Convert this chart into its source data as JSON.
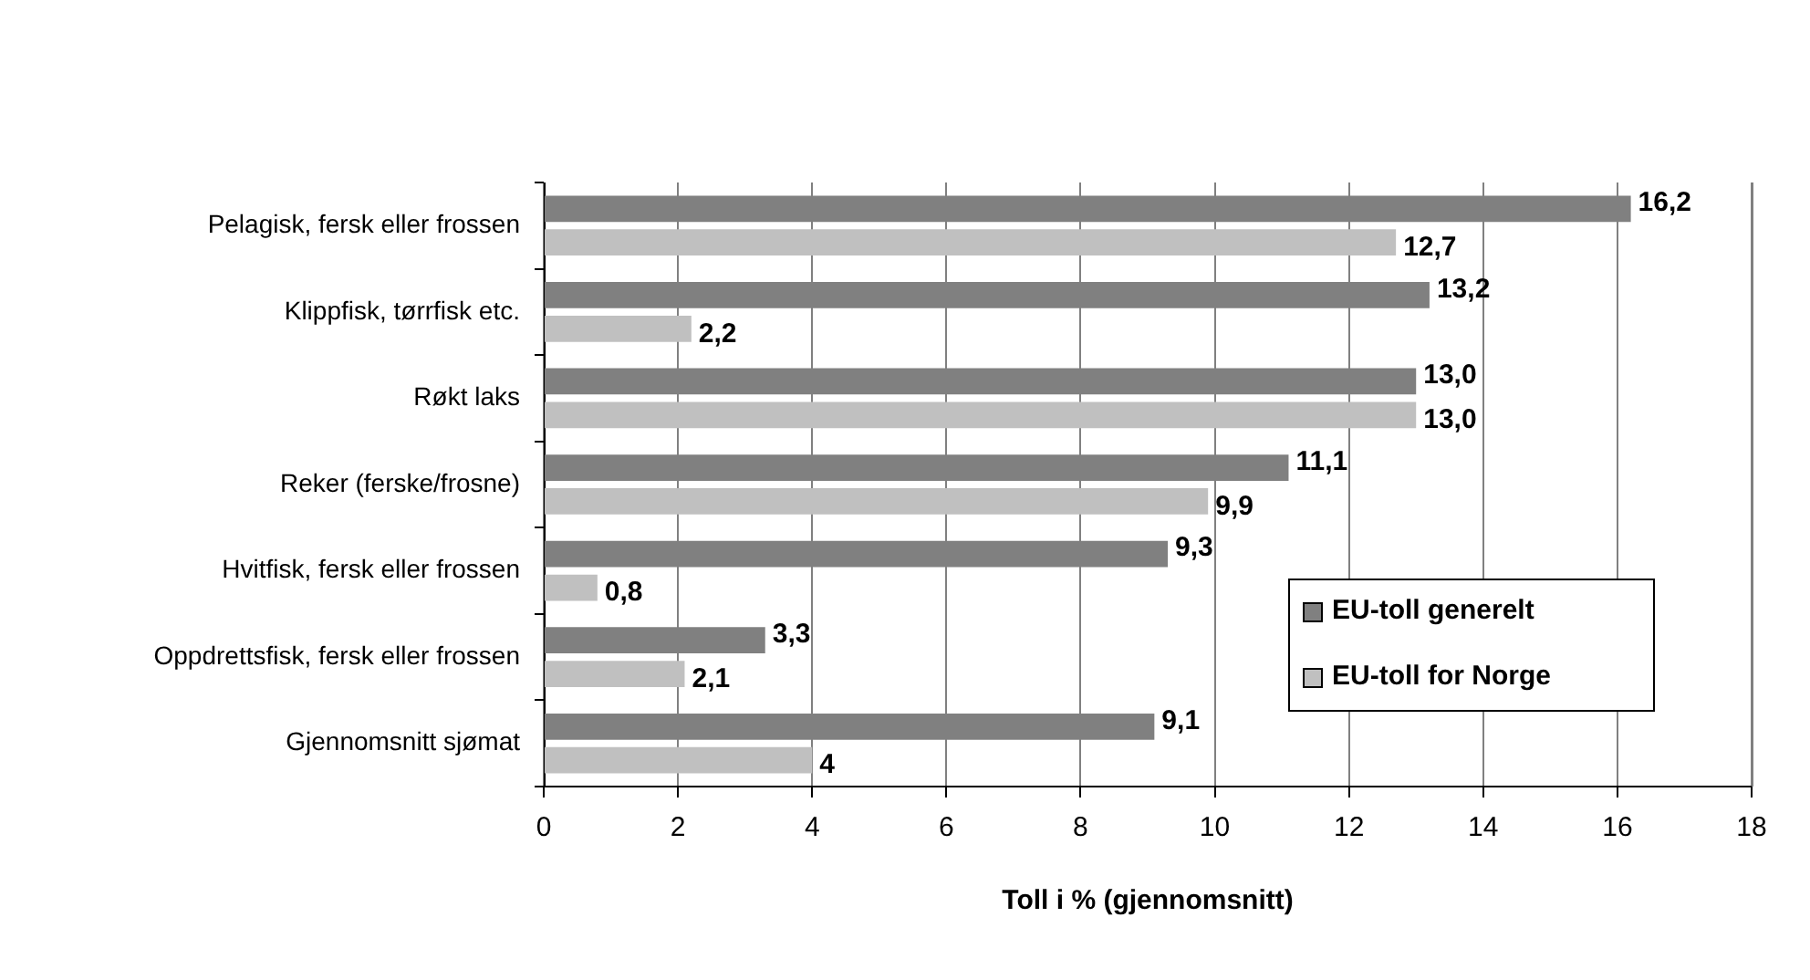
{
  "chart_data": {
    "type": "bar",
    "orientation": "horizontal",
    "xlabel": "Toll i % (gjennomsnitt)",
    "categories": [
      "Pelagisk, fersk eller frossen",
      "Klippfisk, tørrfisk etc.",
      "Røkt laks",
      "Reker (ferske/frosne)",
      "Hvitfisk, fersk eller frossen",
      "Oppdrettsfisk, fersk eller frossen",
      "Gjennomsnitt sjømat"
    ],
    "series": [
      {
        "name": "EU-toll generelt",
        "color": "#808080",
        "values": [
          16.2,
          13.2,
          13.0,
          11.1,
          9.3,
          3.3,
          9.1
        ],
        "value_labels": [
          "16,2",
          "13,2",
          "13,0",
          "11,1",
          "9,3",
          "3,3",
          "9,1"
        ]
      },
      {
        "name": "EU-toll for Norge",
        "color": "#c0c0c0",
        "values": [
          12.7,
          2.2,
          13.0,
          9.9,
          0.8,
          2.1,
          4
        ],
        "value_labels": [
          "12,7",
          "2,2",
          "13,0",
          "9,9",
          "0,8",
          "2,1",
          "4"
        ]
      }
    ],
    "xlim": [
      0,
      18
    ],
    "xticks": [
      0,
      2,
      4,
      6,
      8,
      10,
      12,
      14,
      16,
      18
    ],
    "grid": "x",
    "legend": "bottom right"
  }
}
